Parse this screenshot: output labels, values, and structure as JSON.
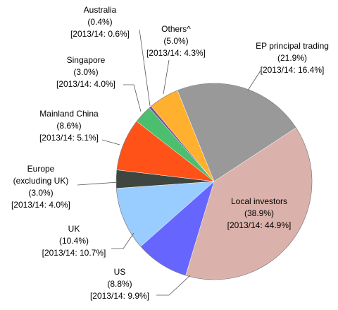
{
  "chart_data": {
    "type": "pie",
    "categories": [
      "EP principal trading",
      "Local investors",
      "US",
      "UK",
      "Europe (excluding UK)",
      "Mainland China",
      "Singapore",
      "Australia",
      "Others^"
    ],
    "values": [
      21.9,
      38.9,
      8.8,
      10.4,
      3.0,
      8.6,
      3.0,
      0.4,
      5.0
    ],
    "value_labels": [
      "(21.9%)",
      "(38.9%)",
      "(8.8%)",
      "(10.4%)",
      "(3.0%)",
      "(8.6%)",
      "(3.0%)",
      "(0.4%)",
      "(5.0%)"
    ],
    "comparison_labels": [
      "[2013/14: 16.4%]",
      "[2013/14: 44.9%]",
      "[2013/14: 9.9%]",
      "[2013/14: 10.7%]",
      "[2013/14: 4.0%]",
      "[2013/14: 5.1%]",
      "[2013/14: 4.0%]",
      "[2013/14: 0.6%]",
      "[2013/14: 4.3%]"
    ],
    "colors": [
      "#999999",
      "#dbb2ab",
      "#6666ff",
      "#99ccff",
      "#3f463f",
      "#ff5219",
      "#4cbf6e",
      "#7a4f9b",
      "#ffb02e"
    ]
  }
}
